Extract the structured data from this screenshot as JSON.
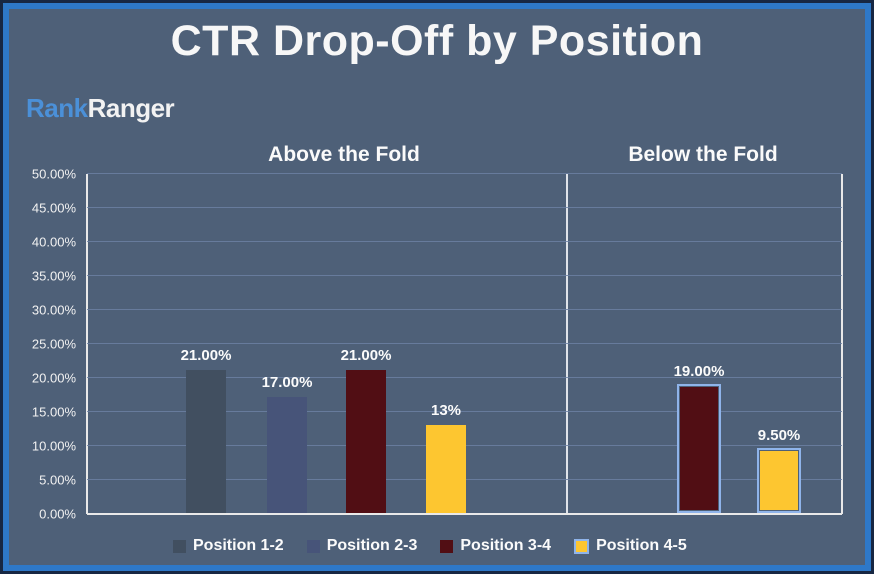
{
  "title": "CTR Drop-Off by Position",
  "logo": {
    "part1": "Rank",
    "part2": "Ranger"
  },
  "colors": {
    "background": "#4e6078",
    "frame_border_blue": "#2e78c8",
    "frame_border_navy": "#172743",
    "gridline": "#6c80a2",
    "axis_line": "#e9e9e9",
    "text": "#fafafa",
    "logo_blue": "#4b90d8",
    "bar_outline_highlight": "#8fb4ea",
    "series_position_1_2": "#414f60",
    "series_position_2_3": "#475479",
    "series_position_3_4": "#510e14",
    "series_position_4_5": "#fdc630"
  },
  "chart_data": {
    "type": "bar",
    "title": "CTR Drop-Off by Position",
    "ylim": [
      0,
      50
    ],
    "ytick_step": 5,
    "yticks": [
      "0.00%",
      "5.00%",
      "10.00%",
      "15.00%",
      "20.00%",
      "25.00%",
      "30.00%",
      "35.00%",
      "40.00%",
      "45.00%",
      "50.00%"
    ],
    "grid": true,
    "legend_position": "bottom",
    "groups": [
      {
        "label": "Above the Fold",
        "bars": [
          {
            "series": "Position 1-2",
            "value": 21.0,
            "label": "21.00%",
            "color": "#414f60",
            "outlined": false
          },
          {
            "series": "Position 2-3",
            "value": 17.0,
            "label": "17.00%",
            "color": "#475479",
            "outlined": false
          },
          {
            "series": "Position 3-4",
            "value": 21.0,
            "label": "21.00%",
            "color": "#510e14",
            "outlined": false
          },
          {
            "series": "Position 4-5",
            "value": 13.0,
            "label": "13%",
            "color": "#fdc630",
            "outlined": false
          }
        ]
      },
      {
        "label": "Below the Fold",
        "bars": [
          {
            "series": "Position 3-4",
            "value": 19.0,
            "label": "19.00%",
            "color": "#510e14",
            "outlined": true
          },
          {
            "series": "Position 4-5",
            "value": 9.5,
            "label": "9.50%",
            "color": "#fdc630",
            "outlined": true
          }
        ]
      }
    ],
    "legend": [
      {
        "label": "Position 1-2",
        "color": "#414f60",
        "outlined": false
      },
      {
        "label": "Position 2-3",
        "color": "#475479",
        "outlined": false
      },
      {
        "label": "Position 3-4",
        "color": "#510e14",
        "outlined": false
      },
      {
        "label": "Position 4-5",
        "color": "#fdc630",
        "outlined": true
      }
    ]
  }
}
